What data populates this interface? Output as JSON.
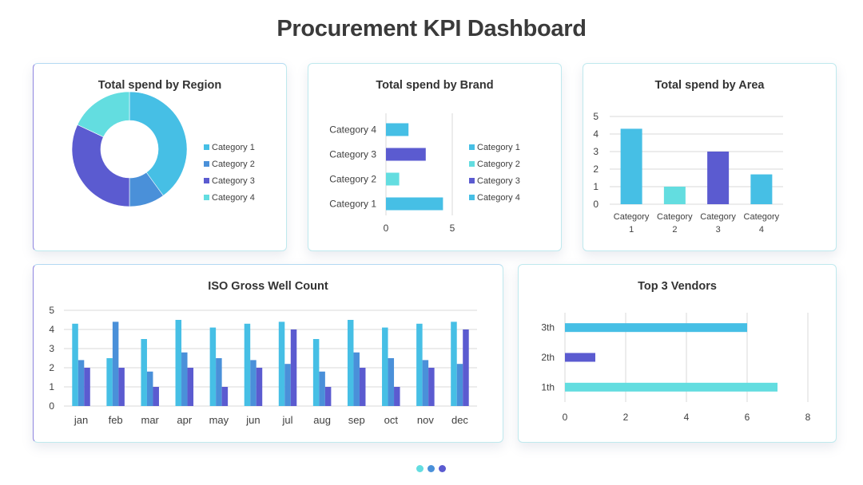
{
  "page": {
    "title": "Procurement KPI Dashboard"
  },
  "colors": {
    "light_blue": "#46bfe5",
    "mid_blue": "#4a90d9",
    "indigo": "#5b5bd0",
    "cyan": "#63dde0"
  },
  "chart_data": [
    {
      "id": "region",
      "type": "pie",
      "title": "Total spend by Region",
      "categories": [
        "Category 1",
        "Category 2",
        "Category 3",
        "Category 4"
      ],
      "values": [
        40,
        10,
        32,
        18
      ],
      "colors": [
        "#46bfe5",
        "#4a90d9",
        "#5b5bd0",
        "#63dde0"
      ],
      "donut": true,
      "legend": "right"
    },
    {
      "id": "brand",
      "type": "bar",
      "orientation": "horizontal",
      "title": "Total spend by Brand",
      "categories": [
        "Category 1",
        "Category 2",
        "Category 3",
        "Category 4"
      ],
      "values": [
        4.3,
        1.0,
        3.0,
        1.7
      ],
      "colors": [
        "#46bfe5",
        "#63dde0",
        "#5b5bd0",
        "#46bfe5"
      ],
      "xlim": [
        0,
        5
      ],
      "xticks": [
        "0",
        "5"
      ],
      "legend": "right",
      "legend_entries": [
        "Category 1",
        "Category 2",
        "Category 3",
        "Category 4"
      ],
      "legend_colors": [
        "#46bfe5",
        "#63dde0",
        "#5b5bd0",
        "#46bfe5"
      ]
    },
    {
      "id": "area",
      "type": "bar",
      "title": "Total spend by Area",
      "categories": [
        "Category 1",
        "Category 2",
        "Category 3",
        "Category 4"
      ],
      "category_lines": [
        [
          "Category",
          "1"
        ],
        [
          "Category",
          "2"
        ],
        [
          "Category",
          "3"
        ],
        [
          "Category",
          "4"
        ]
      ],
      "values": [
        4.3,
        1.0,
        3.0,
        1.7
      ],
      "colors": [
        "#46bfe5",
        "#63dde0",
        "#5b5bd0",
        "#46bfe5"
      ],
      "ylim": [
        0,
        5
      ],
      "yticks": [
        "0",
        "1",
        "2",
        "3",
        "4",
        "5"
      ],
      "grid": true
    },
    {
      "id": "iso",
      "type": "bar",
      "title": "ISO Gross Well Count",
      "categories": [
        "jan",
        "feb",
        "mar",
        "apr",
        "may",
        "jun",
        "jul",
        "aug",
        "sep",
        "oct",
        "nov",
        "dec"
      ],
      "series": [
        {
          "values": [
            4.3,
            2.5,
            3.5,
            4.5,
            4.1,
            4.3,
            4.4,
            3.5,
            4.5,
            4.1,
            4.3,
            4.4
          ],
          "color": "#46bfe5"
        },
        {
          "values": [
            2.4,
            4.4,
            1.8,
            2.8,
            2.5,
            2.4,
            2.2,
            1.8,
            2.8,
            2.5,
            2.4,
            2.2
          ],
          "color": "#4a90d9"
        },
        {
          "values": [
            2.0,
            2.0,
            1.0,
            2.0,
            1.0,
            2.0,
            4.0,
            1.0,
            2.0,
            1.0,
            2.0,
            4.0
          ],
          "color": "#5b5bd0"
        }
      ],
      "ylim": [
        0,
        5
      ],
      "yticks": [
        "0",
        "1",
        "2",
        "3",
        "4",
        "5"
      ],
      "grid": true
    },
    {
      "id": "vendors",
      "type": "bar",
      "orientation": "horizontal",
      "title": "Top 3 Vendors",
      "categories": [
        "1th",
        "2th",
        "3th"
      ],
      "values": [
        7,
        1,
        6
      ],
      "colors": [
        "#63dde0",
        "#5b5bd0",
        "#46bfe5"
      ],
      "xlim": [
        0,
        8
      ],
      "xticks": [
        "0",
        "2",
        "4",
        "6",
        "8"
      ],
      "grid": true
    }
  ],
  "pagination": {
    "dots": [
      "#63dde0",
      "#4a90d9",
      "#5b5bd0"
    ]
  }
}
